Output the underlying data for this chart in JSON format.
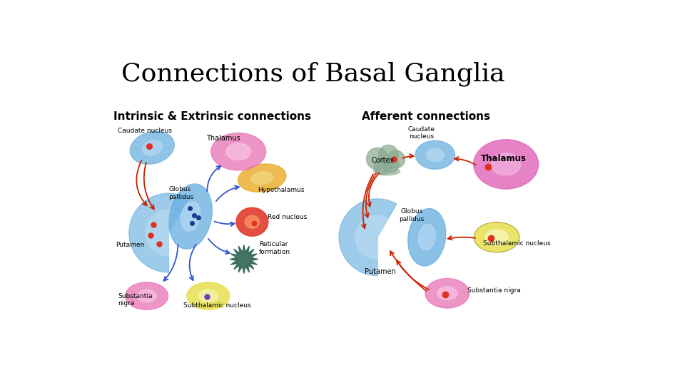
{
  "title": "Connections of Basal Ganglia",
  "title_fontsize": 26,
  "left_subtitle": "Intrinsic & Extrinsic connections",
  "right_subtitle": "Afferent connections",
  "subtitle_fontsize": 11,
  "background_color": "#ffffff",
  "blue_med": "#6ab0e0",
  "blue_light": "#c0dff5",
  "pink_med": "#e878b8",
  "pink_light": "#fcd0ec",
  "orange_med": "#e8a820",
  "orange_light": "#f5e090",
  "red_col": "#e03020",
  "red_light": "#ffa080",
  "yellow_col": "#e8e050",
  "yellow_light": "#f8f8c0",
  "teal_col": "#2a6050",
  "arrow_blue": "#3355cc",
  "arrow_red": "#cc2200"
}
